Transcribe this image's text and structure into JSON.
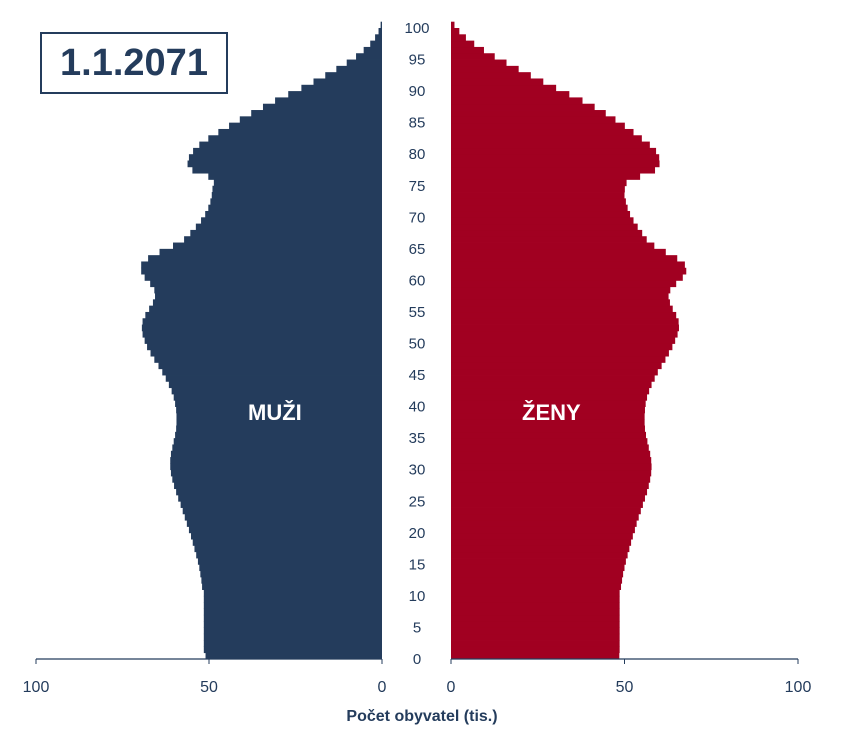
{
  "date_label": "1.1.2071",
  "x_axis_title": "Počet obyvatel (tis.)",
  "chart_data": {
    "type": "bar",
    "subtype": "population-pyramid",
    "title": "1.1.2071",
    "xlabel": "Počet obyvatel (tis.)",
    "ylabel": "",
    "xlim": [
      0,
      100
    ],
    "ylim": [
      0,
      100
    ],
    "y_ticks": [
      0,
      5,
      10,
      15,
      20,
      25,
      30,
      35,
      40,
      45,
      50,
      55,
      60,
      65,
      70,
      75,
      80,
      85,
      90,
      95,
      100
    ],
    "x_ticks_left": [
      "100",
      "50",
      "0"
    ],
    "x_ticks_right": [
      "0",
      "50",
      "100"
    ],
    "colors": {
      "male": "#243c5c",
      "female": "#a10021",
      "text": "#243c5c"
    },
    "ages": [
      0,
      1,
      2,
      3,
      4,
      5,
      6,
      7,
      8,
      9,
      10,
      11,
      12,
      13,
      14,
      15,
      16,
      17,
      18,
      19,
      20,
      21,
      22,
      23,
      24,
      25,
      26,
      27,
      28,
      29,
      30,
      31,
      32,
      33,
      34,
      35,
      36,
      37,
      38,
      39,
      40,
      41,
      42,
      43,
      44,
      45,
      46,
      47,
      48,
      49,
      50,
      51,
      52,
      53,
      54,
      55,
      56,
      57,
      58,
      59,
      60,
      61,
      62,
      63,
      64,
      65,
      66,
      67,
      68,
      69,
      70,
      71,
      72,
      73,
      74,
      75,
      76,
      77,
      78,
      79,
      80,
      81,
      82,
      83,
      84,
      85,
      86,
      87,
      88,
      89,
      90,
      91,
      92,
      93,
      94,
      95,
      96,
      97,
      98,
      99,
      100
    ],
    "series": [
      {
        "name": "MUŽI",
        "values": [
          51,
          51.5,
          51.5,
          51.5,
          51.5,
          51.5,
          51.5,
          51.5,
          51.5,
          51.5,
          51.5,
          52,
          52.2,
          52.5,
          52.8,
          53.2,
          53.7,
          54.2,
          54.7,
          55.2,
          55.8,
          56.4,
          57,
          57.6,
          58.2,
          58.9,
          59.5,
          60.1,
          60.6,
          61,
          61.2,
          61.2,
          61,
          60.6,
          60.2,
          59.8,
          59.5,
          59.4,
          59.4,
          59.5,
          59.8,
          60.2,
          60.8,
          61.6,
          62.5,
          63.5,
          64.6,
          65.8,
          66.9,
          67.9,
          68.6,
          69.2,
          69.4,
          69.2,
          68.4,
          67.3,
          66.2,
          65.6,
          65.8,
          67,
          68.6,
          69.6,
          69.6,
          67.6,
          64.3,
          60.4,
          57.2,
          55.4,
          53.8,
          52.3,
          51.1,
          50.2,
          49.6,
          49.2,
          49,
          48.6,
          50.2,
          54.8,
          56.2,
          55.8,
          54.6,
          52.8,
          50.2,
          47.3,
          44.2,
          41.1,
          37.8,
          34.4,
          30.9,
          27.1,
          23.3,
          19.8,
          16.4,
          13.2,
          10.2,
          7.5,
          5.3,
          3.4,
          2,
          1,
          0.4
        ]
      },
      {
        "name": "ŽENY",
        "values": [
          48.5,
          48.6,
          48.6,
          48.6,
          48.6,
          48.6,
          48.6,
          48.6,
          48.6,
          48.6,
          48.6,
          49,
          49.3,
          49.6,
          50,
          50.4,
          50.9,
          51.4,
          51.9,
          52.4,
          53,
          53.5,
          54.1,
          54.7,
          55.3,
          55.9,
          56.5,
          57,
          57.4,
          57.7,
          57.8,
          57.7,
          57.4,
          57,
          56.6,
          56.2,
          55.9,
          55.8,
          55.8,
          55.9,
          56.1,
          56.5,
          57.1,
          57.8,
          58.7,
          59.6,
          60.7,
          61.8,
          62.8,
          63.8,
          64.6,
          65.3,
          65.7,
          65.6,
          64.9,
          63.9,
          63.1,
          62.7,
          63.2,
          64.9,
          66.8,
          67.8,
          67.4,
          65.2,
          61.9,
          58.6,
          56.4,
          55.1,
          53.8,
          52.6,
          51.6,
          50.9,
          50.4,
          50,
          50.1,
          50.6,
          54.5,
          58.8,
          60.1,
          60,
          59.1,
          57.3,
          55,
          52.6,
          50.1,
          47.4,
          44.6,
          41.4,
          37.9,
          34.1,
          30.3,
          26.6,
          23,
          19.5,
          16,
          12.6,
          9.5,
          6.7,
          4.3,
          2.4,
          1
        ]
      }
    ]
  }
}
